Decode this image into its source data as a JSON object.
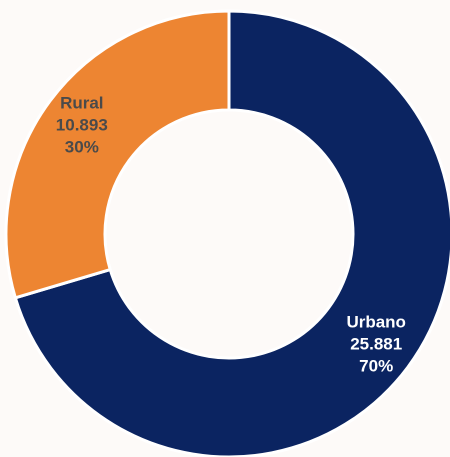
{
  "chart_data": {
    "type": "pie",
    "variant": "donut",
    "slices": [
      {
        "name": "Urbano",
        "value": 25881,
        "value_label": "25.881",
        "percent_label": "70%",
        "color": "#0b2461",
        "label_color": "#ffffff"
      },
      {
        "name": "Rural",
        "value": 10893,
        "value_label": "10.893",
        "percent_label": "30%",
        "color": "#ed8532",
        "label_color": "#4a4a4a"
      }
    ],
    "start": "12 o'clock",
    "direction": "clockwise"
  },
  "colors": {
    "background": "#fdfaf8",
    "separator": "#ffffff"
  }
}
